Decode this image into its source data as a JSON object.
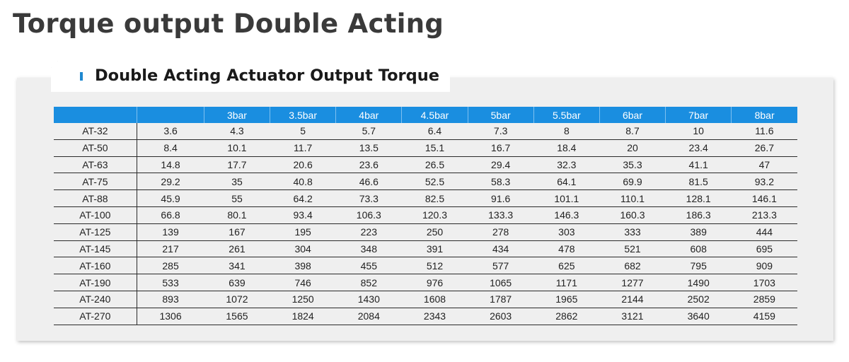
{
  "page": {
    "title": "Torque output Double Acting"
  },
  "panel": {
    "title": "Double Acting Actuator Output Torque"
  },
  "table": {
    "headers": [
      "",
      "",
      "3bar",
      "3.5bar",
      "4bar",
      "4.5bar",
      "5bar",
      "5.5bar",
      "6bar",
      "7bar",
      "8bar"
    ],
    "rows": [
      [
        "AT-32",
        "3.6",
        "4.3",
        "5",
        "5.7",
        "6.4",
        "7.3",
        "8",
        "8.7",
        "10",
        "11.6"
      ],
      [
        "AT-50",
        "8.4",
        "10.1",
        "11.7",
        "13.5",
        "15.1",
        "16.7",
        "18.4",
        "20",
        "23.4",
        "26.7"
      ],
      [
        "AT-63",
        "14.8",
        "17.7",
        "20.6",
        "23.6",
        "26.5",
        "29.4",
        "32.3",
        "35.3",
        "41.1",
        "47"
      ],
      [
        "AT-75",
        "29.2",
        "35",
        "40.8",
        "46.6",
        "52.5",
        "58.3",
        "64.1",
        "69.9",
        "81.5",
        "93.2"
      ],
      [
        "AT-88",
        "45.9",
        "55",
        "64.2",
        "73.3",
        "82.5",
        "91.6",
        "101.1",
        "110.1",
        "128.1",
        "146.1"
      ],
      [
        "AT-100",
        "66.8",
        "80.1",
        "93.4",
        "106.3",
        "120.3",
        "133.3",
        "146.3",
        "160.3",
        "186.3",
        "213.3"
      ],
      [
        "AT-125",
        "139",
        "167",
        "195",
        "223",
        "250",
        "278",
        "303",
        "333",
        "389",
        "444"
      ],
      [
        "AT-145",
        "217",
        "261",
        "304",
        "348",
        "391",
        "434",
        "478",
        "521",
        "608",
        "695"
      ],
      [
        "AT-160",
        "285",
        "341",
        "398",
        "455",
        "512",
        "577",
        "625",
        "682",
        "795",
        "909"
      ],
      [
        "AT-190",
        "533",
        "639",
        "746",
        "852",
        "976",
        "1065",
        "1171",
        "1277",
        "1490",
        "1703"
      ],
      [
        "AT-240",
        "893",
        "1072",
        "1250",
        "1430",
        "1608",
        "1787",
        "1965",
        "2144",
        "2502",
        "2859"
      ],
      [
        "AT-270",
        "1306",
        "1565",
        "1824",
        "2084",
        "2343",
        "2603",
        "2862",
        "3121",
        "3640",
        "4159"
      ]
    ]
  },
  "colors": {
    "header_bg": "#1a8ee0",
    "accent": "#1e88d0",
    "panel_bg": "#efefef",
    "title_text": "#3a3a3a"
  },
  "icons": {
    "tab_marker": "blue-bar-marker"
  }
}
